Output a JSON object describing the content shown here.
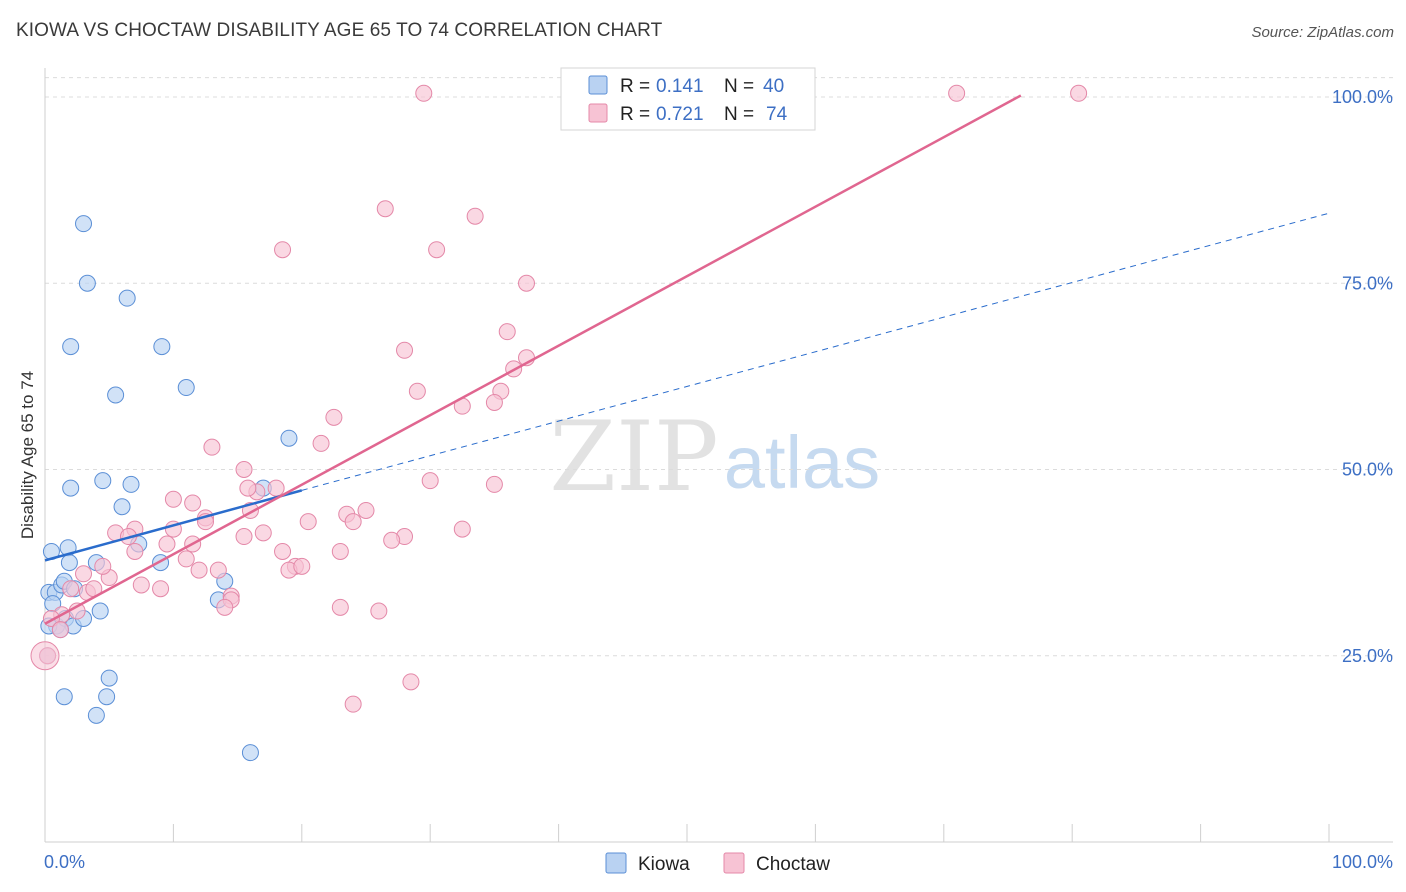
{
  "title": "KIOWA VS CHOCTAW DISABILITY AGE 65 TO 74 CORRELATION CHART",
  "source": "Source: ZipAtlas.com",
  "watermark": {
    "zip": "ZIP",
    "atlas": "atlas"
  },
  "colors": {
    "kiowa_fill": "#b9d2f2",
    "kiowa_stroke": "#5b8fd6",
    "kiowa_line": "#2a6ccc",
    "choctaw_fill": "#f7c3d4",
    "choctaw_stroke": "#e488a8",
    "choctaw_line": "#e06690",
    "tick_label": "#3d6fc4",
    "grid": "#dcdcdc"
  },
  "legend_top": {
    "rows": [
      {
        "r_label": "R =",
        "r_value": "0.141",
        "n_label": "N =",
        "n_value": "40"
      },
      {
        "r_label": "R =",
        "r_value": "0.721",
        "n_label": "N =",
        "n_value": "74"
      }
    ]
  },
  "chart_data": {
    "type": "scatter",
    "title": "KIOWA VS CHOCTAW DISABILITY AGE 65 TO 74 CORRELATION CHART",
    "xlabel": "",
    "ylabel": "Disability Age 65 to 74",
    "xlim": [
      0,
      100
    ],
    "ylim": [
      0,
      103
    ],
    "x_tick_labels": [
      "0.0%",
      "100.0%"
    ],
    "y_ticks": [
      25,
      50,
      75,
      100
    ],
    "y_tick_labels": [
      "25.0%",
      "50.0%",
      "75.0%",
      "100.0%"
    ],
    "grid": true,
    "legend": [
      "Kiowa",
      "Choctaw"
    ],
    "series": [
      {
        "name": "Kiowa",
        "r": 0.141,
        "n": 40,
        "trend": {
          "x0": 0,
          "y0": 37.8,
          "x1": 20,
          "y1": 47.2,
          "dash_to_x": 100,
          "dash_to_y": 84.4
        },
        "points": [
          [
            3,
            83
          ],
          [
            3.3,
            75
          ],
          [
            6.4,
            73
          ],
          [
            2,
            66.5
          ],
          [
            9.1,
            66.5
          ],
          [
            5.5,
            60
          ],
          [
            11,
            61
          ],
          [
            19,
            54.2
          ],
          [
            2,
            47.5
          ],
          [
            4.5,
            48.5
          ],
          [
            6.7,
            48
          ],
          [
            6,
            45
          ],
          [
            17,
            47.5
          ],
          [
            0.5,
            39
          ],
          [
            1.8,
            39.5
          ],
          [
            7.3,
            40
          ],
          [
            1.9,
            37.5
          ],
          [
            4,
            37.5
          ],
          [
            9,
            37.5
          ],
          [
            0.3,
            33.5
          ],
          [
            0.8,
            33.5
          ],
          [
            1.3,
            34.5
          ],
          [
            1.5,
            35
          ],
          [
            2.3,
            34
          ],
          [
            0.6,
            32
          ],
          [
            0.9,
            29
          ],
          [
            1.6,
            30
          ],
          [
            2.2,
            29
          ],
          [
            3,
            30
          ],
          [
            4.3,
            31
          ],
          [
            14,
            35
          ],
          [
            13.5,
            32.5
          ],
          [
            1.5,
            19.5
          ],
          [
            4,
            17
          ],
          [
            4.8,
            19.5
          ],
          [
            5,
            22
          ],
          [
            0.2,
            25
          ],
          [
            16,
            12
          ],
          [
            0.3,
            29
          ],
          [
            1.2,
            28.5
          ]
        ]
      },
      {
        "name": "Choctaw",
        "r": 0.721,
        "n": 74,
        "trend": {
          "x0": 0,
          "y0": 29.3,
          "x1": 76,
          "y1": 100.2
        },
        "points": [
          [
            29.5,
            100.5
          ],
          [
            71,
            100.5
          ],
          [
            80.5,
            100.5
          ],
          [
            26.5,
            85
          ],
          [
            33.5,
            84
          ],
          [
            18.5,
            79.5
          ],
          [
            30.5,
            79.5
          ],
          [
            37.5,
            75
          ],
          [
            36,
            68.5
          ],
          [
            28,
            66
          ],
          [
            37.5,
            65
          ],
          [
            36.5,
            63.5
          ],
          [
            29,
            60.5
          ],
          [
            35.5,
            60.5
          ],
          [
            32.5,
            58.5
          ],
          [
            35,
            59
          ],
          [
            22.5,
            57
          ],
          [
            21.5,
            53.5
          ],
          [
            13,
            53
          ],
          [
            15.5,
            50
          ],
          [
            30,
            48.5
          ],
          [
            35,
            48
          ],
          [
            10,
            46
          ],
          [
            11.5,
            45.5
          ],
          [
            16.5,
            47
          ],
          [
            15.8,
            47.5
          ],
          [
            18,
            47.5
          ],
          [
            23.5,
            44
          ],
          [
            25,
            44.5
          ],
          [
            12.5,
            43.5
          ],
          [
            16,
            44.5
          ],
          [
            7,
            42
          ],
          [
            5.5,
            41.5
          ],
          [
            12.5,
            43
          ],
          [
            20.5,
            43
          ],
          [
            24,
            43
          ],
          [
            32.5,
            42
          ],
          [
            17,
            41.5
          ],
          [
            15.5,
            41
          ],
          [
            28,
            41
          ],
          [
            6.5,
            41
          ],
          [
            11.5,
            40
          ],
          [
            27,
            40.5
          ],
          [
            7,
            39
          ],
          [
            18.5,
            39
          ],
          [
            23,
            39
          ],
          [
            11,
            38
          ],
          [
            19.5,
            37
          ],
          [
            19,
            36.5
          ],
          [
            20,
            37
          ],
          [
            12,
            36.5
          ],
          [
            13.5,
            36.5
          ],
          [
            3,
            36
          ],
          [
            5,
            35.5
          ],
          [
            7.5,
            34.5
          ],
          [
            2,
            34
          ],
          [
            3.3,
            33.5
          ],
          [
            9,
            34
          ],
          [
            14.5,
            33
          ],
          [
            14.5,
            32.5
          ],
          [
            1.3,
            30.5
          ],
          [
            2.5,
            31
          ],
          [
            14,
            31.5
          ],
          [
            23,
            31.5
          ],
          [
            26,
            31
          ],
          [
            0.5,
            30
          ],
          [
            1.2,
            28.5
          ],
          [
            0.2,
            25
          ],
          [
            28.5,
            21.5
          ],
          [
            24,
            18.5
          ],
          [
            3.8,
            34
          ],
          [
            10,
            42
          ],
          [
            4.5,
            37
          ],
          [
            9.5,
            40
          ]
        ]
      }
    ]
  }
}
